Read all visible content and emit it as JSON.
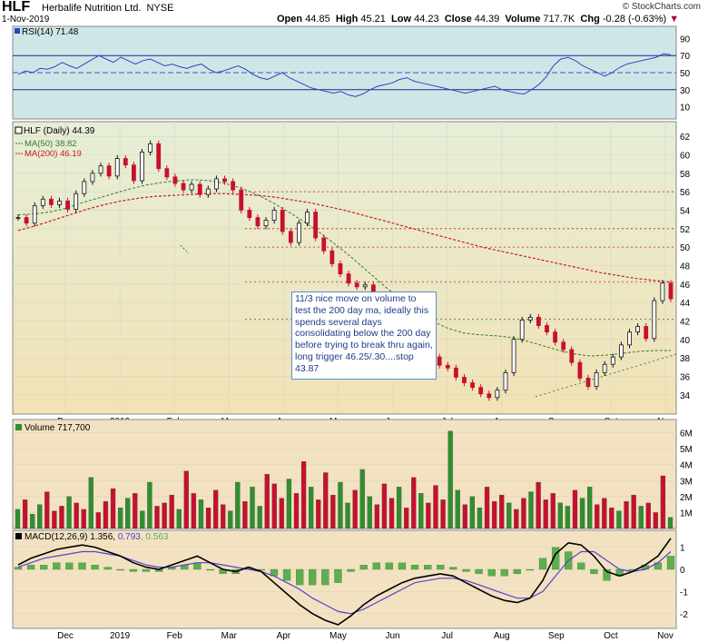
{
  "header": {
    "symbol": "HLF",
    "company": "Herbalife Nutrition Ltd.",
    "exchange": "NYSE",
    "date": "1-Nov-2019",
    "watermark": "© StockCharts.com",
    "open_label": "Open",
    "open": "44.85",
    "high_label": "High",
    "high": "45.21",
    "low_label": "Low",
    "low": "44.23",
    "close_label": "Close",
    "close": "44.39",
    "volume_label": "Volume",
    "volume": "717.7K",
    "chg_label": "Chg",
    "chg": "-0.28 (-0.63%)",
    "chg_symbol": "▼"
  },
  "colors": {
    "up": "#2f8f2f",
    "down": "#c8102e",
    "rsi_line": "#2a44c8",
    "ma50": "#2f7a2f",
    "ma200": "#cc1b1b",
    "macd": "#000000",
    "signal": "#5a3fd0",
    "hist": "#5fae4e",
    "annotation": "#1f3a8a"
  },
  "annotation": {
    "text": "11/3 nice move on volume to test the 200 day ma, ideally this spends several days consolidating below the 200 day before trying to break thru again, long trigger 46.25/.30....stop 43.87"
  },
  "chart_data": [
    {
      "type": "line",
      "title": "RSI(14) 71.48",
      "label": "RSI(14)",
      "value": "71.48",
      "ylim": [
        0,
        100
      ],
      "yticks": [
        "90",
        "70",
        "50",
        "30",
        "10"
      ],
      "reference_lines": [
        70,
        50,
        30
      ],
      "x_start": "2018-11-26",
      "x_end": "2019-11-01",
      "values": [
        48,
        52,
        50,
        55,
        54,
        57,
        62,
        58,
        55,
        60,
        65,
        70,
        66,
        62,
        68,
        64,
        60,
        64,
        66,
        62,
        58,
        60,
        57,
        55,
        58,
        60,
        54,
        50,
        52,
        55,
        58,
        54,
        48,
        44,
        42,
        46,
        50,
        44,
        40,
        36,
        32,
        30,
        28,
        26,
        28,
        24,
        22,
        25,
        30,
        34,
        36,
        38,
        42,
        44,
        40,
        38,
        36,
        34,
        32,
        30,
        28,
        26,
        28,
        30,
        32,
        34,
        30,
        28,
        26,
        25,
        30,
        36,
        45,
        58,
        66,
        68,
        64,
        58,
        54,
        50,
        46,
        50,
        56,
        60,
        62,
        64,
        66,
        68,
        72,
        71
      ]
    },
    {
      "type": "line",
      "title": "HLF (Daily) 44.39",
      "label": "HLF (Daily)",
      "value": "44.39",
      "series": [
        {
          "name": "MA(50)",
          "value": "38.82",
          "values": [
            53.5,
            53.6,
            53.8,
            54.2,
            54.8,
            55.3,
            55.8,
            56.3,
            56.7,
            57.0,
            57.2,
            57.3,
            57.2,
            56.9,
            56.4,
            55.7,
            54.8,
            53.8,
            52.7,
            51.5,
            50.2,
            48.8,
            47.3,
            45.8,
            44.4,
            43.1,
            42.0,
            41.2,
            40.7,
            40.5,
            40.4,
            40.2,
            39.8,
            39.3,
            38.8,
            38.4,
            38.2,
            38.3,
            38.5,
            38.7,
            38.8,
            38.8
          ]
        },
        {
          "name": "MA(200)",
          "value": "46.19",
          "values": [
            51.8,
            52.3,
            52.9,
            53.5,
            54.1,
            54.6,
            55.0,
            55.3,
            55.5,
            55.6,
            55.7,
            55.8,
            55.8,
            55.7,
            55.6,
            55.4,
            55.1,
            54.8,
            54.4,
            54.0,
            53.5,
            53.0,
            52.5,
            52.0,
            51.5,
            51.0,
            50.5,
            50.0,
            49.6,
            49.2,
            48.8,
            48.4,
            48.0,
            47.6,
            47.2,
            46.9,
            46.6,
            46.4,
            46.2
          ]
        }
      ],
      "close": [
        53.2,
        52.6,
        54.5,
        55.2,
        54.6,
        55.0,
        54.1,
        55.8,
        57.1,
        58.0,
        58.8,
        57.7,
        59.6,
        58.9,
        57.2,
        60.3,
        61.2,
        58.5,
        57.6,
        56.9,
        56.2,
        56.8,
        55.7,
        56.3,
        57.4,
        57.1,
        56.2,
        54.0,
        53.2,
        52.3,
        52.9,
        54.0,
        51.7,
        50.5,
        52.6,
        53.8,
        51.0,
        49.6,
        48.2,
        47.1,
        46.1,
        45.7,
        45.9,
        42.6,
        41.8,
        41.5,
        41.7,
        40.3,
        40.8,
        39.4,
        38.1,
        37.2,
        36.9,
        35.9,
        35.3,
        34.8,
        34.1,
        33.7,
        34.5,
        36.4,
        40.0,
        42.1,
        42.4,
        41.5,
        40.8,
        39.7,
        38.9,
        37.5,
        35.8,
        34.9,
        36.4,
        37.3,
        38.1,
        39.4,
        40.8,
        41.4,
        40.1,
        44.2,
        46.1,
        44.4
      ],
      "ylim": [
        32.5,
        63
      ],
      "yticks": [
        "62",
        "60",
        "58",
        "56",
        "54",
        "52",
        "50",
        "48",
        "46",
        "44",
        "42",
        "40",
        "38",
        "36",
        "34"
      ],
      "reference_lines": [
        56,
        52,
        50,
        46.25,
        42.2
      ],
      "xticks": [
        "Dec",
        "2019",
        "Feb",
        "Mar",
        "Apr",
        "May",
        "Jun",
        "Jul",
        "Aug",
        "Sep",
        "Oct",
        "Nov"
      ]
    },
    {
      "type": "bar",
      "title": "Volume 717,700",
      "label": "Volume",
      "value": "717,700",
      "ylim": [
        0,
        6.6
      ],
      "yticks": [
        "6M",
        "5M",
        "4M",
        "3M",
        "2M",
        "1M"
      ],
      "values_millions": [
        1.2,
        1.8,
        0.9,
        1.5,
        2.3,
        1.1,
        1.4,
        2.0,
        1.6,
        1.2,
        3.2,
        1.0,
        1.7,
        2.5,
        1.3,
        1.9,
        2.2,
        1.1,
        2.9,
        1.4,
        1.6,
        2.1,
        1.2,
        3.6,
        2.2,
        1.8,
        1.3,
        2.4,
        1.5,
        1.1,
        2.9,
        1.7,
        2.6,
        1.4,
        3.4,
        2.8,
        1.9,
        3.1,
        2.2,
        4.2,
        2.6,
        1.8,
        3.5,
        2.1,
        2.9,
        1.6,
        2.4,
        3.7,
        2.0,
        1.5,
        2.8,
        1.9,
        2.6,
        1.3,
        3.2,
        2.2,
        1.6,
        2.7,
        1.8,
        6.1,
        2.4,
        1.5,
        2.0,
        1.3,
        2.6,
        1.7,
        2.1,
        1.6,
        1.2,
        1.9,
        2.3,
        2.9,
        1.8,
        2.2,
        1.6,
        1.4,
        2.4,
        1.9,
        2.6,
        1.5,
        1.9,
        1.3,
        1.1,
        1.7,
        2.1,
        1.4,
        1.6,
        1.0,
        3.3,
        0.7
      ],
      "xticks": [
        "Dec",
        "2019",
        "Feb",
        "Mar",
        "Apr",
        "May",
        "Jun",
        "Jul",
        "Aug",
        "Sep",
        "Oct",
        "Nov"
      ]
    },
    {
      "type": "line",
      "title": "MACD(12,26,9) 1.356, 0.793, 0.563",
      "label": "MACD(12,26,9)",
      "macd_value": "1.356",
      "signal_value": "0.793",
      "hist_value": "0.563",
      "ylim": [
        -2.5,
        1.6
      ],
      "yticks": [
        "1",
        "0",
        "-1",
        "-2"
      ],
      "macd": [
        0.2,
        0.5,
        0.7,
        0.9,
        1.0,
        1.1,
        1.0,
        0.8,
        0.6,
        0.3,
        0.1,
        0.0,
        0.2,
        0.4,
        0.6,
        0.3,
        0.0,
        -0.1,
        0.1,
        -0.1,
        -0.6,
        -1.1,
        -1.6,
        -2.0,
        -2.3,
        -2.5,
        -2.1,
        -1.6,
        -1.2,
        -0.9,
        -0.6,
        -0.4,
        -0.3,
        -0.2,
        -0.3,
        -0.6,
        -0.9,
        -1.2,
        -1.4,
        -1.5,
        -1.3,
        -0.5,
        0.7,
        1.2,
        1.1,
        0.6,
        -0.1,
        -0.3,
        -0.1,
        0.2,
        0.6,
        1.4
      ],
      "signal": [
        0.1,
        0.3,
        0.5,
        0.6,
        0.7,
        0.8,
        0.8,
        0.7,
        0.6,
        0.4,
        0.2,
        0.1,
        0.1,
        0.2,
        0.3,
        0.3,
        0.2,
        0.1,
        0.0,
        -0.1,
        -0.3,
        -0.6,
        -0.9,
        -1.3,
        -1.6,
        -1.9,
        -2.0,
        -1.8,
        -1.5,
        -1.2,
        -0.9,
        -0.6,
        -0.5,
        -0.4,
        -0.4,
        -0.5,
        -0.7,
        -0.9,
        -1.1,
        -1.3,
        -1.3,
        -1.0,
        -0.3,
        0.4,
        0.8,
        0.8,
        0.4,
        0.0,
        -0.1,
        0.0,
        0.3,
        0.8
      ]
    }
  ]
}
